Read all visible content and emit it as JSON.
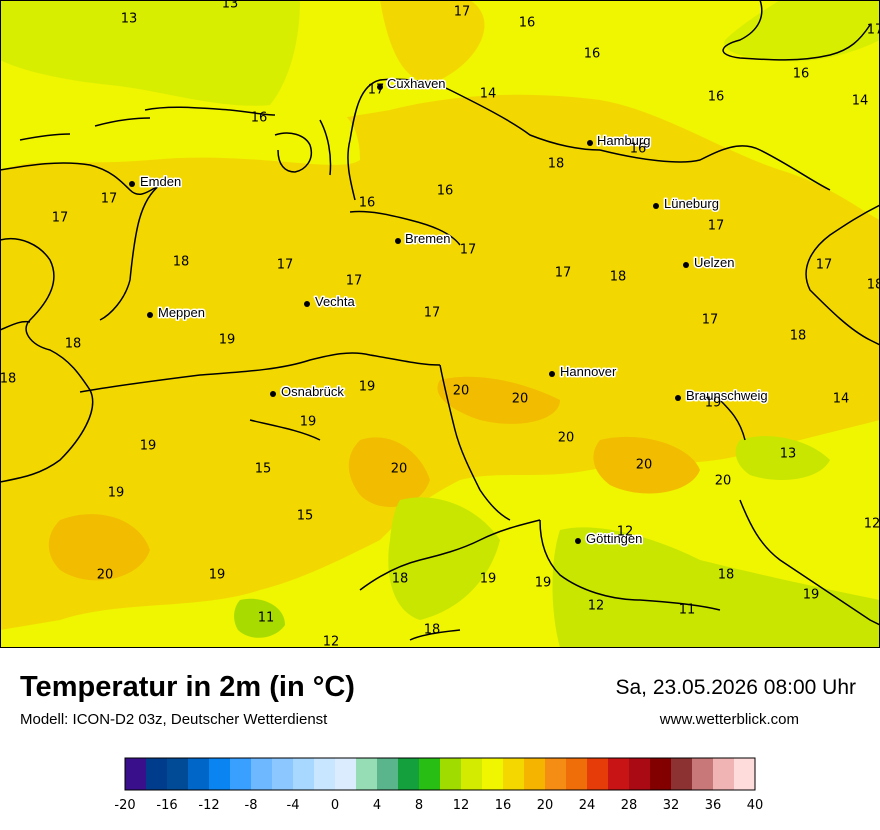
{
  "header": {
    "title": "Temperatur in 2m (in °C)",
    "model": "Modell: ICON-D2 03z, Deutscher Wetterdienst",
    "datetime": "Sa, 23.05.2026 08:00 Uhr",
    "website": "www.wetterblick.com"
  },
  "cities": [
    {
      "name": "Cuxhaven"
    },
    {
      "name": "Hamburg"
    },
    {
      "name": "Emden"
    },
    {
      "name": "Lüneburg"
    },
    {
      "name": "Bremen"
    },
    {
      "name": "Uelzen"
    },
    {
      "name": "Vechta"
    },
    {
      "name": "Meppen"
    },
    {
      "name": "Hannover"
    },
    {
      "name": "Osnabrück"
    },
    {
      "name": "Braunschweig"
    },
    {
      "name": "Göttingen"
    }
  ],
  "temperature_labels": [
    "13",
    "13",
    "17",
    "16",
    "16",
    "17",
    "16",
    "17",
    "14",
    "16",
    "16",
    "14",
    "16",
    "18",
    "16",
    "17",
    "17",
    "16",
    "17",
    "17",
    "18",
    "17",
    "17",
    "17",
    "18",
    "17",
    "17",
    "18",
    "18",
    "19",
    "17",
    "18",
    "18",
    "19",
    "20",
    "20",
    "19",
    "14",
    "19",
    "19",
    "20",
    "13",
    "20",
    "15",
    "20",
    "20",
    "19",
    "15",
    "12",
    "12",
    "20",
    "19",
    "18",
    "19",
    "19",
    "18",
    "19",
    "12",
    "11",
    "11",
    "12",
    "18"
  ],
  "legend": {
    "ticks": [
      "-20",
      "-16",
      "-12",
      "-8",
      "-4",
      "0",
      "4",
      "8",
      "12",
      "16",
      "20",
      "24",
      "28",
      "32",
      "36",
      "40"
    ],
    "colors": [
      "#3a0f8c",
      "#003c8c",
      "#004a96",
      "#0066c8",
      "#0a84f0",
      "#3aa0ff",
      "#6eb8ff",
      "#8cc8ff",
      "#a8d8ff",
      "#c8e6ff",
      "#dcecff",
      "#96dcb4",
      "#5ab48c",
      "#14a03c",
      "#28be14",
      "#a0dc00",
      "#d2eb00",
      "#f0f500",
      "#f5d700",
      "#f5b400",
      "#f58c14",
      "#f06e0a",
      "#e63c0a",
      "#c81414",
      "#aa0a14",
      "#820000",
      "#8c3232",
      "#c87878",
      "#f0b4b4",
      "#ffdcdc"
    ]
  },
  "colors": {
    "temp16": "#f0f500",
    "temp18": "#f2d800",
    "temp20": "#f2bc00",
    "temp12": "#c8e600",
    "temp13": "#d8ee00",
    "sea": "#d4ea00"
  }
}
